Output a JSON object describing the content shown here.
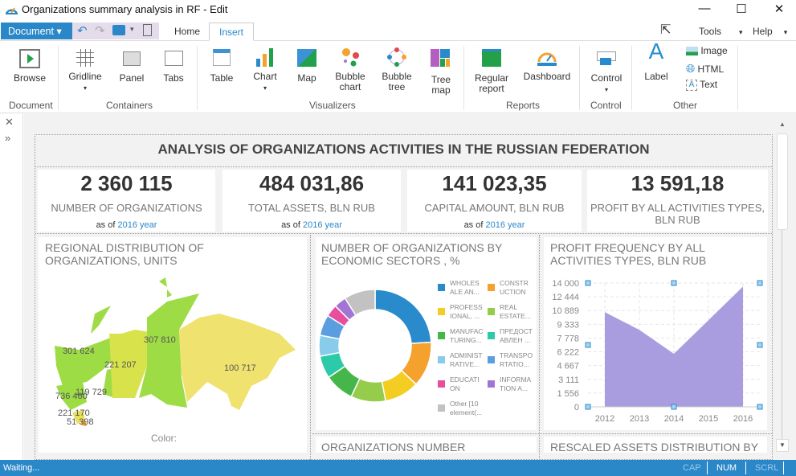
{
  "window": {
    "title": "Organizations summary analysis in RF - Edit"
  },
  "tabs": {
    "document": "Document",
    "home": "Home",
    "insert": "Insert",
    "tools": "Tools",
    "help": "Help"
  },
  "ribbon": {
    "document": {
      "label": "Document",
      "browse": "Browse"
    },
    "containers": {
      "label": "Containers",
      "gridline": "Gridline",
      "panel": "Panel",
      "tabs": "Tabs"
    },
    "visualizers": {
      "label": "Visualizers",
      "table": "Table",
      "chart": "Chart",
      "map": "Map",
      "bubble_chart": [
        "Bubble",
        "chart"
      ],
      "bubble_tree": [
        "Bubble",
        "tree"
      ],
      "tree_map": [
        "Tree",
        "map"
      ]
    },
    "reports": {
      "label": "Reports",
      "regular_report": [
        "Regular",
        "report"
      ],
      "dashboard": "Dashboard"
    },
    "control": {
      "label": "Control",
      "control": "Control"
    },
    "other": {
      "label": "Other",
      "label_btn": "Label",
      "image": "Image",
      "html": "HTML",
      "text": "Text"
    }
  },
  "dashboard": {
    "title": "ANALYSIS OF ORGANIZATIONS ACTIVITIES IN THE RUSSIAN FEDERATION",
    "kpis": [
      {
        "value": "2 360 115",
        "label": "NUMBER OF ORGANIZATIONS",
        "as_of": "as of",
        "year": "2016 year"
      },
      {
        "value": "484 031,86",
        "label": "TOTAL ASSETS, BLN RUB",
        "as_of": "as of",
        "year": "2016 year"
      },
      {
        "value": "141 023,35",
        "label": "CAPITAL AMOUNT, BLN RUB",
        "as_of": "as of",
        "year": "2016 year"
      },
      {
        "value": "13 591,18",
        "label": "PROFIT BY ALL ACTIVITIES TYPES, BLN RUB"
      }
    ],
    "map": {
      "title": "REGIONAL DISTRIBUTION OF ORGANIZATIONS, UNITS",
      "labels": [
        "301 624",
        "221 207",
        "307 810",
        "100 717",
        "736 460",
        "119 729",
        "221 170",
        "51 398"
      ],
      "color_label": "Color:"
    },
    "next_titles": [
      "ORGANIZATIONS NUMBER",
      "RESCALED ASSETS DISTRIBUTION BY"
    ]
  },
  "chart_data": [
    {
      "type": "pie",
      "title": "NUMBER OF ORGANIZATIONS BY ECONOMIC SECTORS , %",
      "legend": [
        "WHOLES ALE AN...",
        "CONSTR UCTION",
        "PROFESS IONAL, ...",
        "REAL ESTATE...",
        "MANUFAC TURING...",
        "ПРЕДОСТ АВЛЕН ...",
        "ADMINIST RATIVE...",
        "TRANSPO RTATIO...",
        "EDUCATI ON",
        "INFORMA TION A...",
        "Other [10 element(..."
      ],
      "values": [
        24,
        13,
        10,
        10,
        8.5,
        6.5,
        6,
        6,
        3.5,
        3.5,
        9
      ],
      "colors": [
        "#2a8bcc",
        "#f4a12e",
        "#f4cd22",
        "#95cc4b",
        "#45b649",
        "#2ccaa8",
        "#88cbeb",
        "#5a9ee0",
        "#e74e9d",
        "#a274d6",
        "#c2c2c2"
      ]
    },
    {
      "type": "area",
      "title": "PROFIT FREQUENCY BY ALL ACTIVITIES TYPES, BLN RUB",
      "x": [
        "2012",
        "2013",
        "2014",
        "2015",
        "2016"
      ],
      "values": [
        10700,
        8700,
        6000,
        9800,
        13600
      ],
      "yticks": [
        "14 000",
        "12 444",
        "10 889",
        "9 333",
        "7 778",
        "6 222",
        "4 667",
        "3 111",
        "1 556",
        "0"
      ],
      "ylim": [
        0,
        14000
      ],
      "color": "#a99de0"
    }
  ],
  "status": {
    "text": "Waiting...",
    "cap": "CAP",
    "num": "NUM",
    "scrl": "SCRL"
  }
}
